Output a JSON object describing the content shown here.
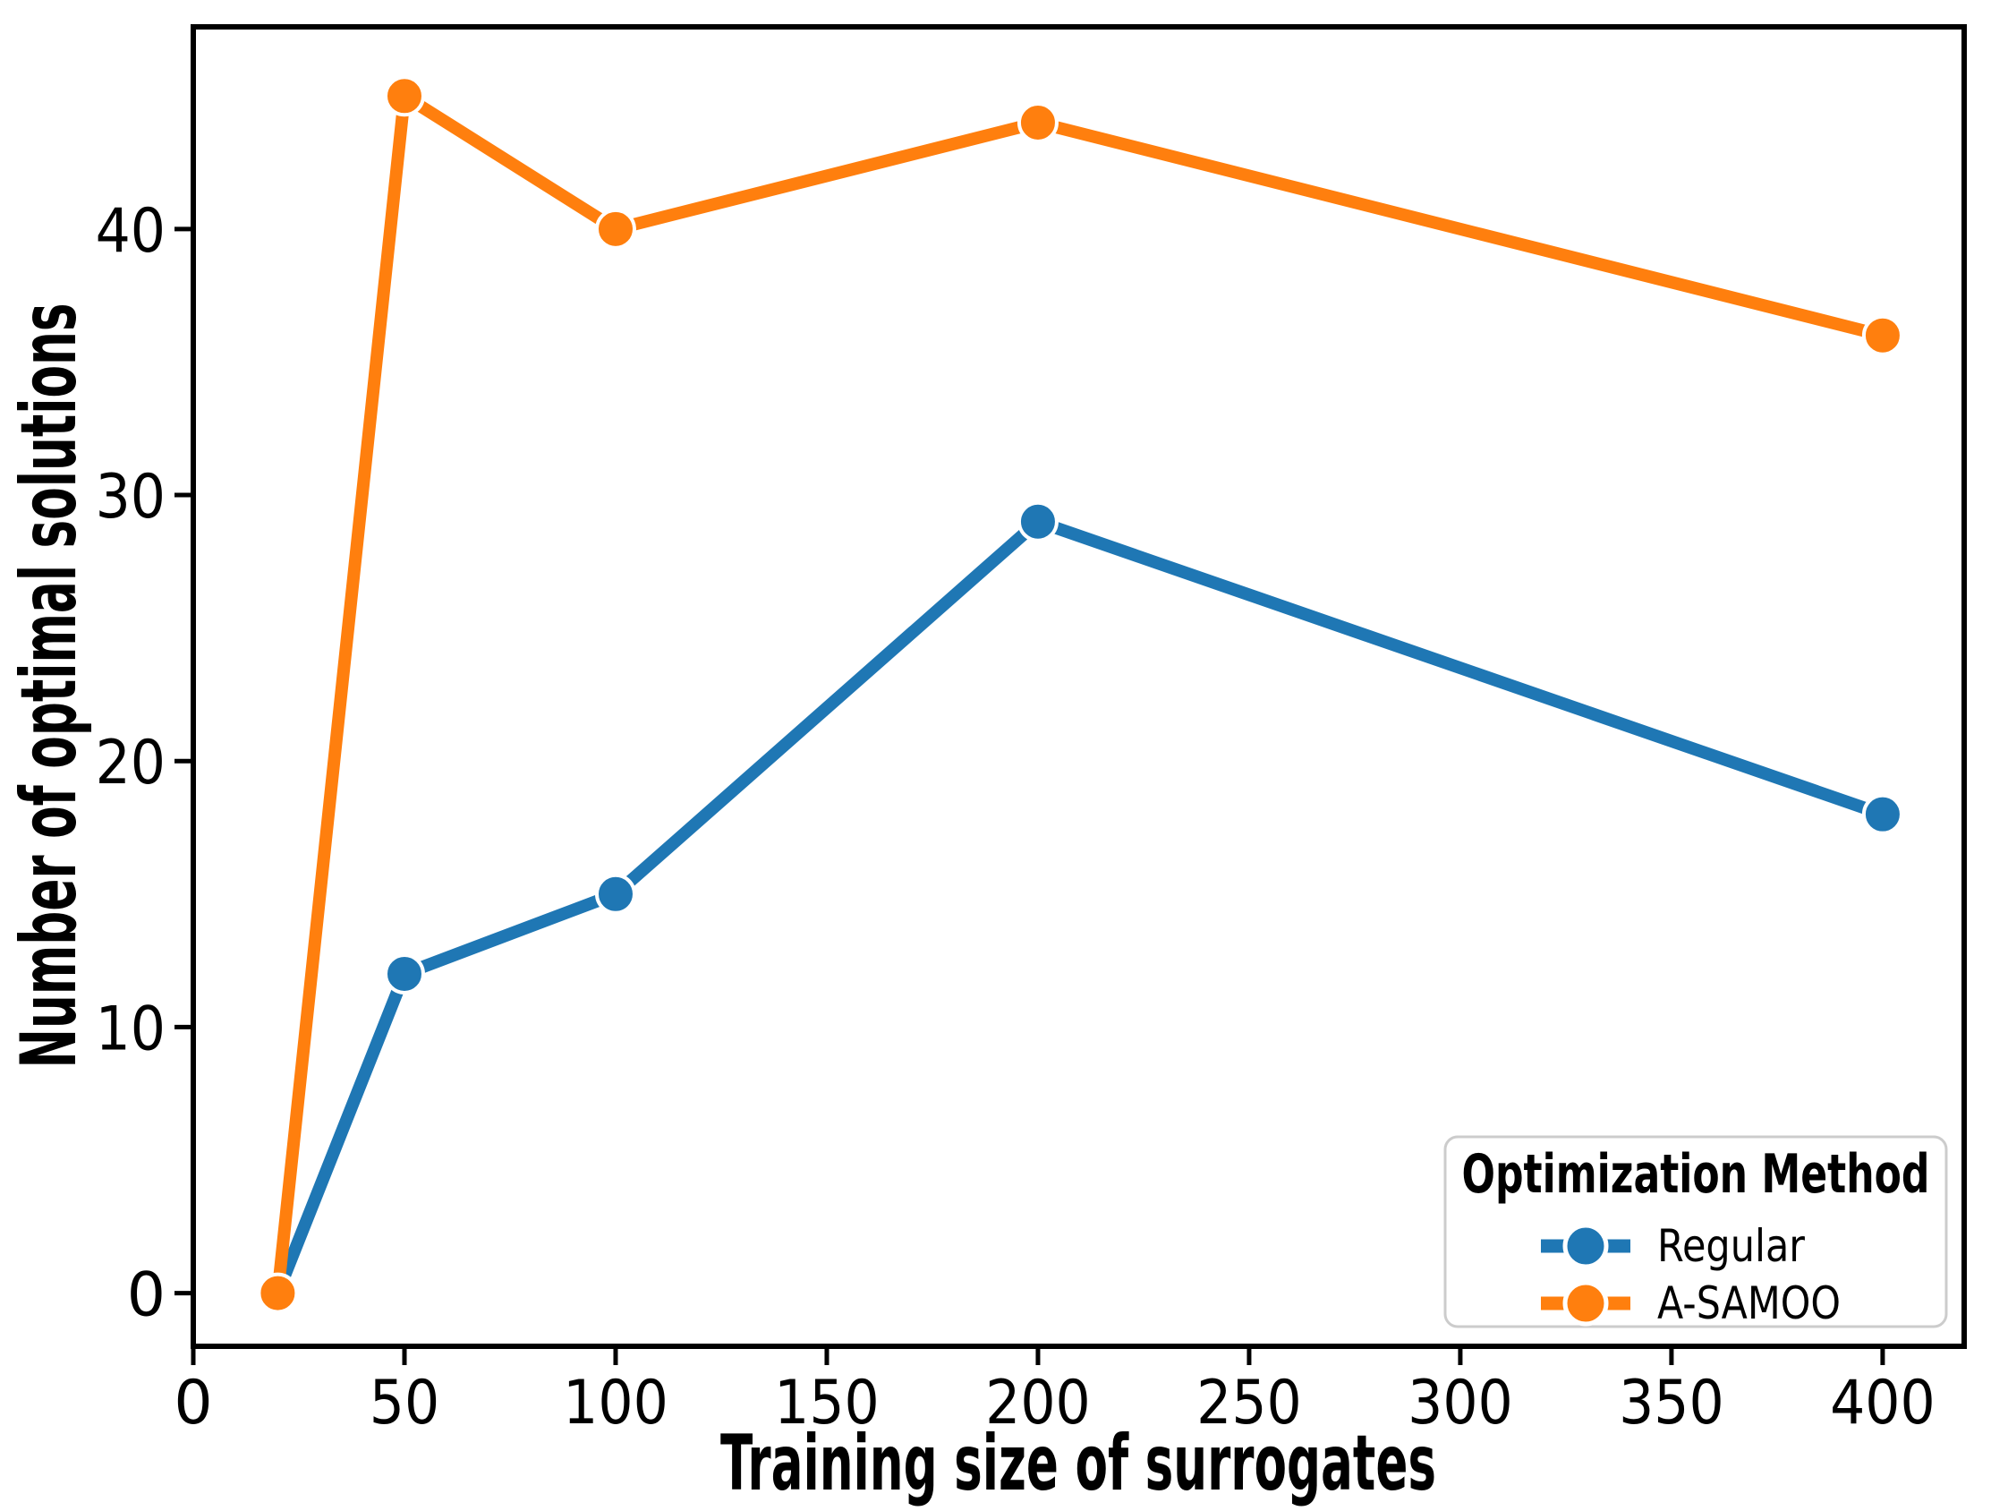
{
  "figure": {
    "background": "#ffffff",
    "text_color": "#000000"
  },
  "chart_data": {
    "type": "line",
    "title": "",
    "xlabel": "Training size of surrogates",
    "ylabel": "Number of optimal solutions",
    "x": [
      20,
      50,
      100,
      200,
      400
    ],
    "series": [
      {
        "name": "Regular",
        "color": "#1f77b4",
        "values": [
          0,
          12,
          15,
          29,
          18
        ]
      },
      {
        "name": "A-SAMOO",
        "color": "#ff7f0e",
        "values": [
          0,
          45,
          40,
          44,
          36
        ]
      }
    ],
    "xticks": [
      0,
      50,
      100,
      150,
      200,
      250,
      300,
      350,
      400
    ],
    "yticks": [
      0,
      10,
      20,
      30,
      40
    ],
    "xlim": [
      0,
      419.3
    ],
    "ylim": [
      -2,
      47.6
    ],
    "grid": false,
    "marker": "circle",
    "legend": {
      "title": "Optimization Method",
      "position": "lower right",
      "border_color": "#cccccc"
    }
  }
}
